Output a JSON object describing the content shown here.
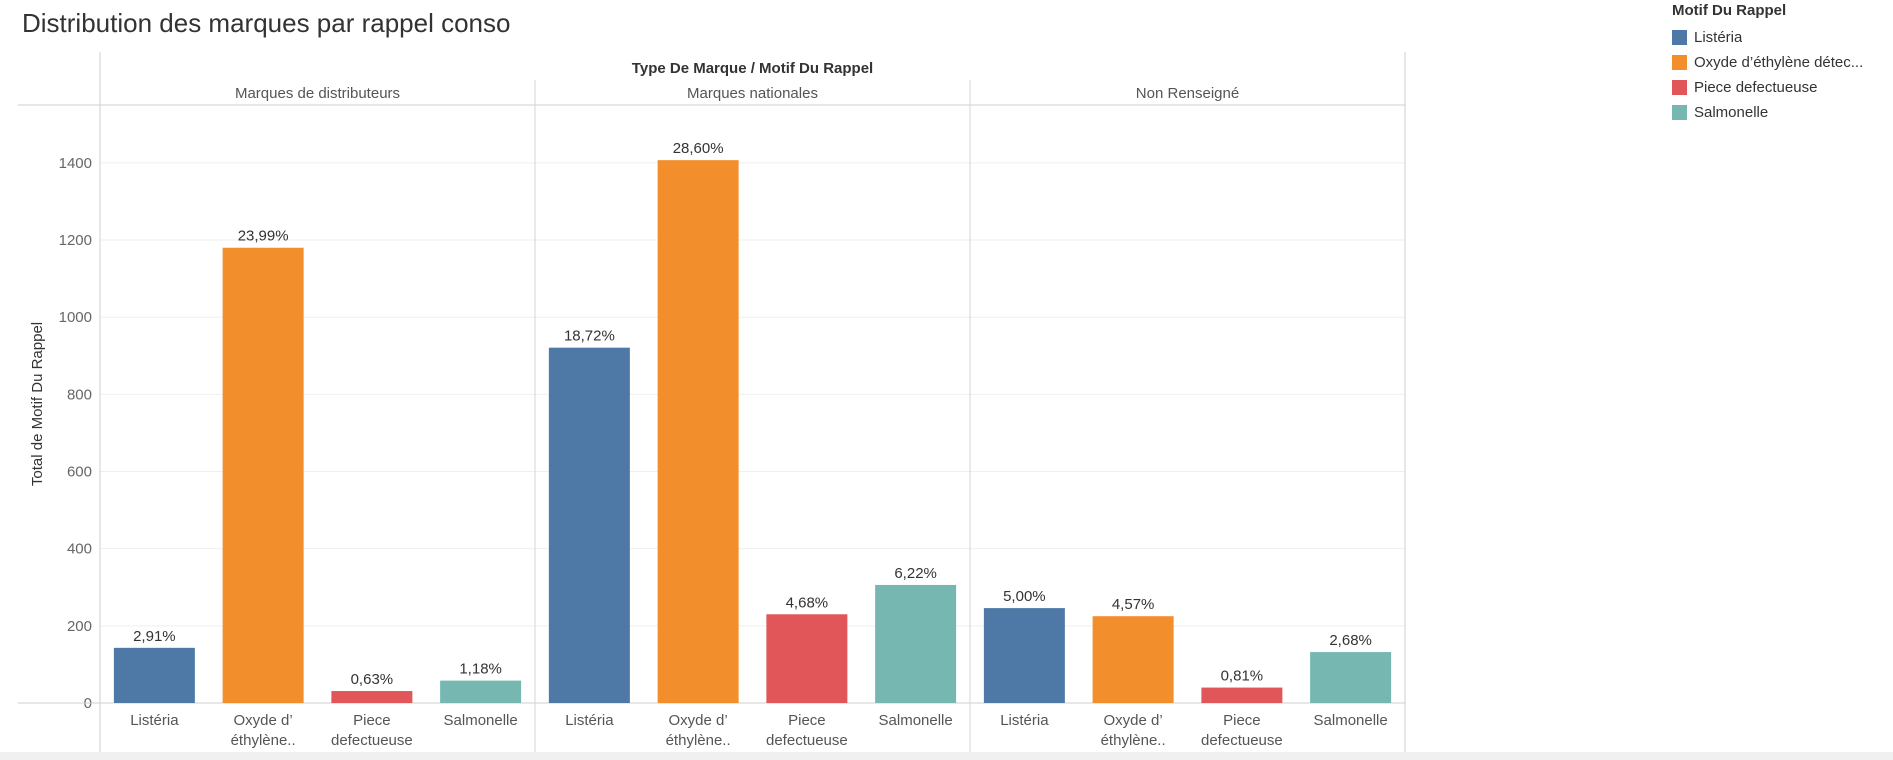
{
  "page": {
    "title": "Distribution des marques par rappel conso"
  },
  "legend": {
    "title": "Motif Du Rappel",
    "items": [
      {
        "label": "Listéria",
        "color": "#4e79a7"
      },
      {
        "label": "Oxyde d’éthylène détec...",
        "color": "#f28e2b"
      },
      {
        "label": "Piece defectueuse",
        "color": "#e15759"
      },
      {
        "label": "Salmonelle",
        "color": "#76b7b2"
      }
    ]
  },
  "chart_data": {
    "type": "bar",
    "header_title": "Type De Marque / Motif Du Rappel",
    "ylabel": "Total de Motif Du Rappel",
    "ylim": [
      0,
      1550
    ],
    "yticks": [
      0,
      200,
      400,
      600,
      800,
      1000,
      1200,
      1400
    ],
    "grid": true,
    "legend_position": "top-right",
    "panels": [
      {
        "name": "Marques de distributeurs",
        "categories": [
          [
            "Listéria"
          ],
          [
            "Oxyde d’",
            "éthylène.."
          ],
          [
            "Piece",
            "defectueuse"
          ],
          [
            "Salmonelle"
          ]
        ],
        "values": [
          143,
          1180,
          31,
          58
        ],
        "labels": [
          "2,91%",
          "23,99%",
          "0,63%",
          "1,18%"
        ],
        "colors": [
          "#4e79a7",
          "#f28e2b",
          "#e15759",
          "#76b7b2"
        ]
      },
      {
        "name": "Marques nationales",
        "categories": [
          [
            "Listéria"
          ],
          [
            "Oxyde d’",
            "éthylène.."
          ],
          [
            "Piece",
            "defectueuse"
          ],
          [
            "Salmonelle"
          ]
        ],
        "values": [
          921,
          1407,
          230,
          306
        ],
        "labels": [
          "18,72%",
          "28,60%",
          "4,68%",
          "6,22%"
        ],
        "colors": [
          "#4e79a7",
          "#f28e2b",
          "#e15759",
          "#76b7b2"
        ]
      },
      {
        "name": "Non Renseigné",
        "categories": [
          [
            "Listéria"
          ],
          [
            "Oxyde d’",
            "éthylène.."
          ],
          [
            "Piece",
            "defectueuse"
          ],
          [
            "Salmonelle"
          ]
        ],
        "values": [
          246,
          225,
          40,
          132
        ],
        "labels": [
          "5,00%",
          "4,57%",
          "0,81%",
          "2,68%"
        ],
        "colors": [
          "#4e79a7",
          "#f28e2b",
          "#e15759",
          "#76b7b2"
        ]
      }
    ]
  }
}
